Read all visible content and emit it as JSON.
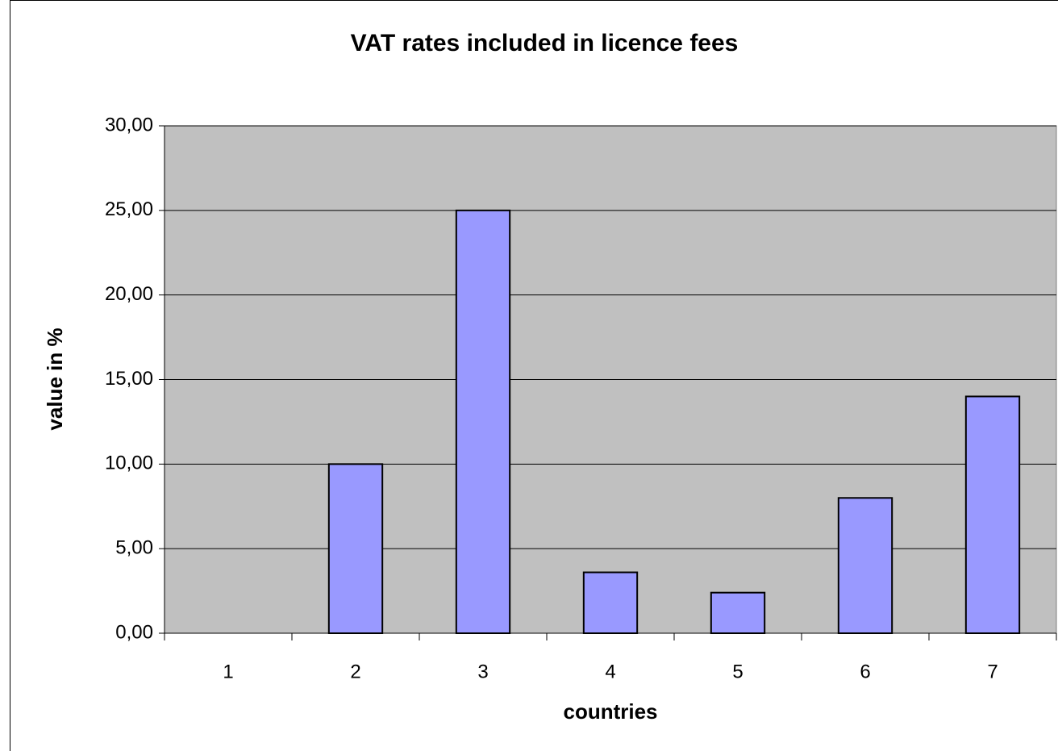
{
  "chart_data": {
    "type": "bar",
    "title": "VAT rates included in licence fees",
    "x_label": "countries",
    "y_label": "value in %",
    "categories": [
      "1",
      "2",
      "3",
      "4",
      "5",
      "6",
      "7"
    ],
    "values": [
      0,
      10,
      25,
      3.6,
      2.4,
      8,
      14
    ],
    "color": "#9999ff",
    "ylim": [
      0,
      30
    ],
    "yticks": [
      {
        "value": 0,
        "label": "0,00"
      },
      {
        "value": 5,
        "label": "5,00"
      },
      {
        "value": 10,
        "label": "10,00"
      },
      {
        "value": 15,
        "label": "15,00"
      },
      {
        "value": 20,
        "label": "20,00"
      },
      {
        "value": 25,
        "label": "25,00"
      },
      {
        "value": 30,
        "label": "30,00"
      }
    ],
    "grid": true
  }
}
